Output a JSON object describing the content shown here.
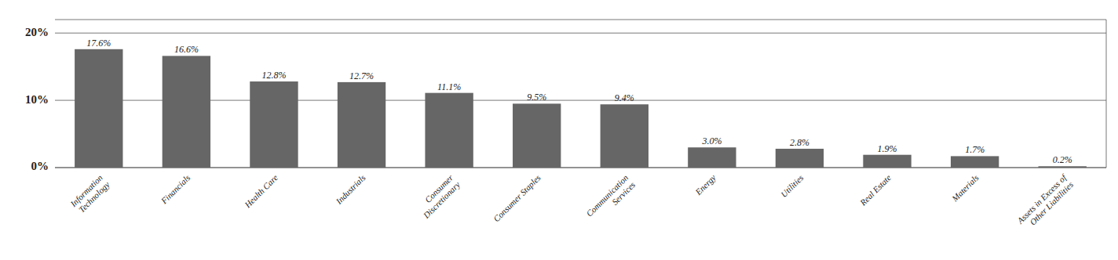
{
  "chart_data": {
    "type": "bar",
    "categories": [
      "Information\nTechnology",
      "Financials",
      "Health Care",
      "Industrials",
      "Consumer\nDiscretionary",
      "Consumer Staples",
      "Communication\nServices",
      "Energy",
      "Utilities",
      "Real Estate",
      "Materials",
      "Assets in Excess of\nOther Liabilities"
    ],
    "values": [
      17.6,
      16.6,
      12.8,
      12.7,
      11.1,
      9.5,
      9.4,
      3.0,
      2.8,
      1.9,
      1.7,
      0.2
    ],
    "value_labels": [
      "17.6%",
      "16.6%",
      "12.8%",
      "12.7%",
      "11.1%",
      "9.5%",
      "9.4%",
      "3.0%",
      "2.8%",
      "1.9%",
      "1.7%",
      "0.2%"
    ],
    "data_labels": true,
    "color": "#666666",
    "ylim": [
      0,
      22
    ],
    "yticks": [
      {
        "value": 0,
        "label": "0%"
      },
      {
        "value": 10,
        "label": "10%"
      },
      {
        "value": 20,
        "label": "20%"
      }
    ],
    "grid": true
  }
}
